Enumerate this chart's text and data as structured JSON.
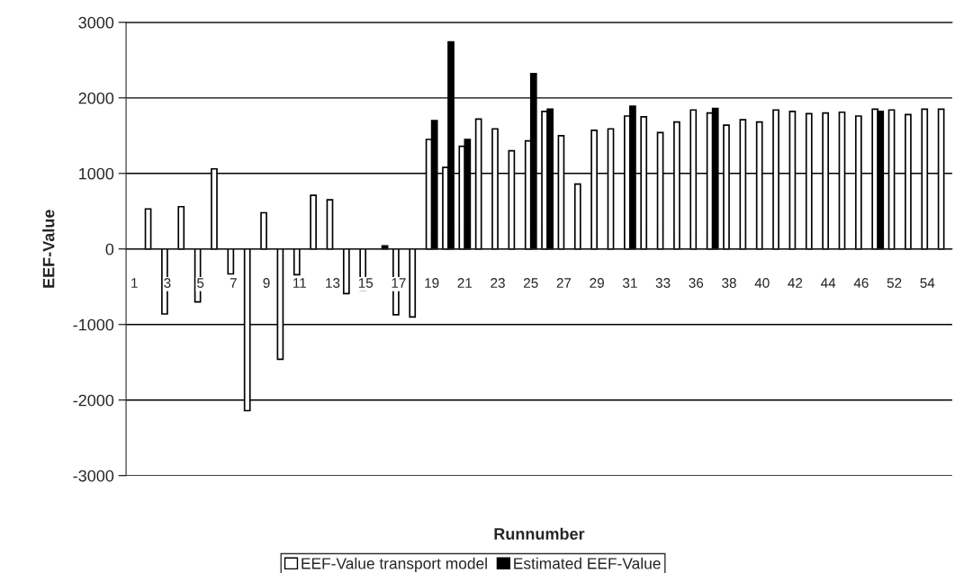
{
  "chart_data": {
    "type": "bar",
    "xlabel": "Runnumber",
    "ylabel": "EEF-Value",
    "categories": [
      "1",
      null,
      "3",
      null,
      "5",
      null,
      "7",
      null,
      "9",
      null,
      "11",
      null,
      "13",
      null,
      "15",
      null,
      "17",
      null,
      "19",
      null,
      "21",
      null,
      "23",
      null,
      "25",
      null,
      "27",
      null,
      "29",
      null,
      "31",
      null,
      "33",
      null,
      "36",
      null,
      "38",
      null,
      "40",
      null,
      "42",
      null,
      "44",
      null,
      "46",
      null,
      "52",
      null,
      "54",
      null
    ],
    "series": [
      {
        "name": "EEF-Value transport model",
        "color": "#ffffff",
        "values": [
          null,
          530,
          -860,
          560,
          -700,
          1060,
          -330,
          -2140,
          480,
          -1460,
          -340,
          710,
          650,
          -590,
          -550,
          null,
          -870,
          -900,
          1450,
          1080,
          1360,
          1720,
          1590,
          1300,
          1430,
          1820,
          1500,
          860,
          1570,
          1590,
          1760,
          1750,
          1540,
          1680,
          1840,
          1800,
          1640,
          1710,
          1680,
          1840,
          1820,
          1790,
          1800,
          1810,
          1760,
          1850,
          1840,
          1780,
          1850,
          1850
        ]
      },
      {
        "name": "Estimated EEF-Value",
        "color": "#000000",
        "values": [
          null,
          null,
          null,
          null,
          null,
          null,
          null,
          null,
          null,
          null,
          null,
          null,
          null,
          null,
          null,
          40,
          null,
          null,
          1700,
          2740,
          1450,
          null,
          null,
          null,
          2320,
          1850,
          null,
          null,
          null,
          null,
          1890,
          null,
          null,
          null,
          null,
          1860,
          null,
          null,
          null,
          null,
          null,
          null,
          null,
          null,
          null,
          1820,
          null,
          null,
          null,
          null
        ]
      }
    ],
    "ylim": [
      -3000,
      3000
    ],
    "yticks": [
      -3000,
      -2000,
      -1000,
      0,
      1000,
      2000,
      3000
    ],
    "grid": "y",
    "legend": "bottom"
  }
}
